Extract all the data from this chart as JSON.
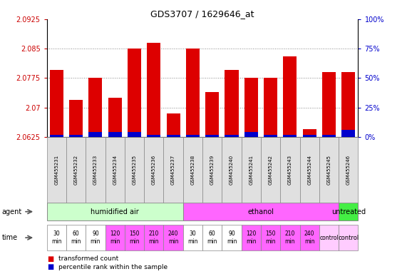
{
  "title": "GDS3707 / 1629646_at",
  "samples": [
    "GSM455231",
    "GSM455232",
    "GSM455233",
    "GSM455234",
    "GSM455235",
    "GSM455236",
    "GSM455237",
    "GSM455238",
    "GSM455239",
    "GSM455240",
    "GSM455241",
    "GSM455242",
    "GSM455243",
    "GSM455244",
    "GSM455245",
    "GSM455246"
  ],
  "red_values": [
    2.0795,
    2.072,
    2.0775,
    2.0725,
    2.085,
    2.0865,
    2.0685,
    2.085,
    2.074,
    2.0795,
    2.0775,
    2.0775,
    2.083,
    2.0645,
    2.079,
    2.079
  ],
  "blue_values_pct": [
    2,
    2,
    4,
    4,
    4,
    2,
    2,
    2,
    2,
    2,
    4,
    2,
    2,
    2,
    2,
    6
  ],
  "ymin": 2.0625,
  "ymax": 2.0925,
  "yticks": [
    2.0625,
    2.07,
    2.0775,
    2.085,
    2.0925
  ],
  "ytick_labels": [
    "2.0625",
    "2.07",
    "2.0775",
    "2.085",
    "2.0925"
  ],
  "right_yticks": [
    0,
    25,
    50,
    75,
    100
  ],
  "right_ytick_labels": [
    "0%",
    "25%",
    "50%",
    "75%",
    "100%"
  ],
  "agent_groups": [
    {
      "label": "humidified air",
      "start": 0,
      "end": 7,
      "color": "#ccffcc"
    },
    {
      "label": "ethanol",
      "start": 7,
      "end": 15,
      "color": "#ff66ff"
    },
    {
      "label": "untreated",
      "start": 15,
      "end": 16,
      "color": "#44ee44"
    }
  ],
  "time_entries": [
    {
      "label": "30\nmin",
      "color": "#ffffff"
    },
    {
      "label": "60\nmin",
      "color": "#ffffff"
    },
    {
      "label": "90\nmin",
      "color": "#ffffff"
    },
    {
      "label": "120\nmin",
      "color": "#ff66ff"
    },
    {
      "label": "150\nmin",
      "color": "#ff66ff"
    },
    {
      "label": "210\nmin",
      "color": "#ff66ff"
    },
    {
      "label": "240\nmin",
      "color": "#ff66ff"
    },
    {
      "label": "30\nmin",
      "color": "#ffffff"
    },
    {
      "label": "60\nmin",
      "color": "#ffffff"
    },
    {
      "label": "90\nmin",
      "color": "#ffffff"
    },
    {
      "label": "120\nmin",
      "color": "#ff66ff"
    },
    {
      "label": "150\nmin",
      "color": "#ff66ff"
    },
    {
      "label": "210\nmin",
      "color": "#ff66ff"
    },
    {
      "label": "240\nmin",
      "color": "#ff66ff"
    },
    {
      "label": "control",
      "color": "#ffccff"
    }
  ],
  "bar_color_red": "#dd0000",
  "bar_color_blue": "#0000cc",
  "bar_width": 0.7,
  "tick_label_color_left": "#cc0000",
  "tick_label_color_right": "#0000cc",
  "grid_color": "#888888",
  "separator_color": "#aaaaaa"
}
